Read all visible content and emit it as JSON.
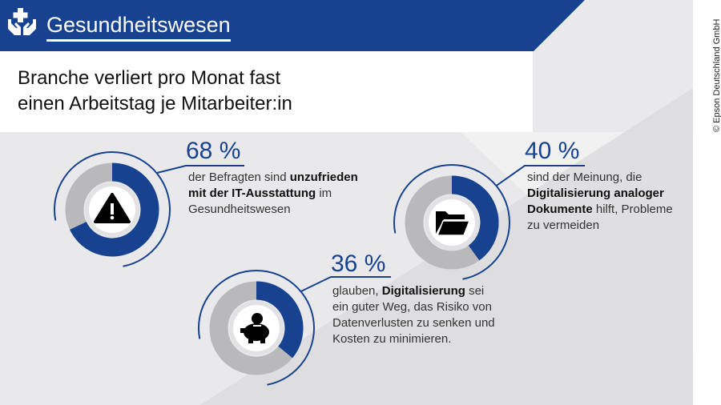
{
  "header": {
    "title": "Gesundheitswesen",
    "icon": "hands-cross-icon"
  },
  "headline": {
    "line1": "Branche verliert pro Monat fast",
    "line2": "einen Arbeitstag je Mitarbeiter:in"
  },
  "copyright": "© Epson Deutschland GmbH",
  "colors": {
    "brand_blue": "#17428f",
    "ring_gray": "#b9b9bb",
    "background": "#e9e9eb"
  },
  "stats": [
    {
      "value": 68,
      "label": "68 %",
      "icon": "warning-icon",
      "text": [
        {
          "t": "der Befragten sind ",
          "b": false
        },
        {
          "t": "unzufrieden mit der IT-Ausstattung",
          "b": true
        },
        {
          "t": " im Gesundheitswesen",
          "b": false
        }
      ]
    },
    {
      "value": 40,
      "label": "40 %",
      "icon": "folder-icon",
      "text": [
        {
          "t": "sind der Meinung, die ",
          "b": false
        },
        {
          "t": "Digitalisierung analoger Dokumente",
          "b": true
        },
        {
          "t": " hilft, Probleme zu vermeiden",
          "b": false
        }
      ]
    },
    {
      "value": 36,
      "label": "36 %",
      "icon": "piggy-bank-icon",
      "text": [
        {
          "t": "glauben, ",
          "b": false
        },
        {
          "t": "Digitalisierung",
          "b": true
        },
        {
          "t": " sei ein guter Weg, das Risiko von Datenverlusten zu senken und Kosten zu minimieren.",
          "b": false
        }
      ]
    }
  ]
}
